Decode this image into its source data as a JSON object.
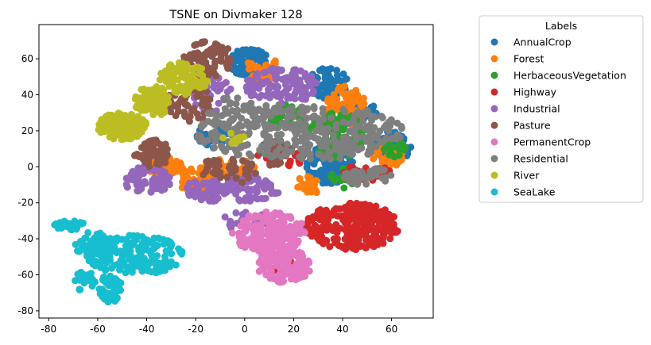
{
  "chart_data": {
    "type": "scatter",
    "title": "TSNE on Divmaker 128",
    "xlabel": "",
    "ylabel": "",
    "xlim": [
      -84,
      77
    ],
    "ylim": [
      -84,
      79
    ],
    "xticks": [
      -80,
      -60,
      -40,
      -20,
      0,
      20,
      40,
      60
    ],
    "yticks": [
      -80,
      -60,
      -40,
      -20,
      0,
      20,
      40,
      60
    ],
    "grid": false,
    "legend": {
      "title": "Labels",
      "placement": "outside-right-top"
    },
    "series": [
      {
        "name": "AnnualCrop",
        "color": "#1f77b4",
        "clusters": [
          {
            "x": [
              -6,
              10
            ],
            "y": [
              50,
              66
            ],
            "n": 90
          },
          {
            "x": [
              26,
              42
            ],
            "y": [
              38,
              55
            ],
            "n": 70
          },
          {
            "x": [
              25,
              45
            ],
            "y": [
              -10,
              12
            ],
            "n": 110
          },
          {
            "x": [
              52,
              68
            ],
            "y": [
              3,
              20
            ],
            "n": 60
          },
          {
            "x": [
              40,
              55
            ],
            "y": [
              25,
              36
            ],
            "n": 40
          },
          {
            "x": [
              -20,
              -5
            ],
            "y": [
              10,
              25
            ],
            "n": 30
          }
        ]
      },
      {
        "name": "Forest",
        "color": "#ff7f0e",
        "clusters": [
          {
            "x": [
              -40,
              -25
            ],
            "y": [
              -5,
              5
            ],
            "n": 70
          },
          {
            "x": [
              -27,
              -10
            ],
            "y": [
              -15,
              0
            ],
            "n": 60
          },
          {
            "x": [
              32,
              50
            ],
            "y": [
              20,
              45
            ],
            "n": 90
          },
          {
            "x": [
              52,
              65
            ],
            "y": [
              0,
              12
            ],
            "n": 40
          },
          {
            "x": [
              0,
              15
            ],
            "y": [
              45,
              62
            ],
            "n": 30
          },
          {
            "x": [
              -15,
              5
            ],
            "y": [
              -5,
              5
            ],
            "n": 35
          },
          {
            "x": [
              20,
              35
            ],
            "y": [
              -15,
              -5
            ],
            "n": 25
          }
        ]
      },
      {
        "name": "HerbaceousVegetation",
        "color": "#2ca02c",
        "clusters": [
          {
            "x": [
              25,
              50
            ],
            "y": [
              5,
              30
            ],
            "n": 110
          },
          {
            "x": [
              35,
              48
            ],
            "y": [
              -12,
              0
            ],
            "n": 30
          },
          {
            "x": [
              10,
              25
            ],
            "y": [
              20,
              35
            ],
            "n": 40
          },
          {
            "x": [
              55,
              66
            ],
            "y": [
              5,
              15
            ],
            "n": 25
          }
        ]
      },
      {
        "name": "Highway",
        "color": "#d62728",
        "clusters": [
          {
            "x": [
              25,
              63
            ],
            "y": [
              -46,
              -20
            ],
            "n": 260
          },
          {
            "x": [
              40,
              60
            ],
            "y": [
              -8,
              2
            ],
            "n": 30
          },
          {
            "x": [
              10,
              20
            ],
            "y": [
              -60,
              -50
            ],
            "n": 15
          },
          {
            "x": [
              5,
              25
            ],
            "y": [
              0,
              10
            ],
            "n": 20
          }
        ]
      },
      {
        "name": "Industrial",
        "color": "#9467bd",
        "clusters": [
          {
            "x": [
              -50,
              -30
            ],
            "y": [
              -15,
              0
            ],
            "n": 70
          },
          {
            "x": [
              -25,
              15
            ],
            "y": [
              -20,
              -5
            ],
            "n": 120
          },
          {
            "x": [
              0,
              30
            ],
            "y": [
              35,
              55
            ],
            "n": 110
          },
          {
            "x": [
              -22,
              -5
            ],
            "y": [
              30,
              50
            ],
            "n": 40
          },
          {
            "x": [
              -10,
              10
            ],
            "y": [
              -35,
              -25
            ],
            "n": 20
          }
        ]
      },
      {
        "name": "Pasture",
        "color": "#8c564b",
        "clusters": [
          {
            "x": [
              -25,
              -5
            ],
            "y": [
              50,
              70
            ],
            "n": 80
          },
          {
            "x": [
              -45,
              -30
            ],
            "y": [
              0,
              15
            ],
            "n": 60
          },
          {
            "x": [
              -32,
              -12
            ],
            "y": [
              25,
              45
            ],
            "n": 60
          },
          {
            "x": [
              -20,
              5
            ],
            "y": [
              -10,
              5
            ],
            "n": 40
          },
          {
            "x": [
              5,
              20
            ],
            "y": [
              0,
              15
            ],
            "n": 30
          }
        ]
      },
      {
        "name": "PermanentCrop",
        "color": "#e377c2",
        "clusters": [
          {
            "x": [
              -5,
              25
            ],
            "y": [
              -48,
              -25
            ],
            "n": 180
          },
          {
            "x": [
              5,
              27
            ],
            "y": [
              -65,
              -45
            ],
            "n": 130
          }
        ]
      },
      {
        "name": "Residential",
        "color": "#7f7f7f",
        "clusters": [
          {
            "x": [
              -20,
              65
            ],
            "y": [
              3,
              35
            ],
            "n": 320
          },
          {
            "x": [
              -15,
              10
            ],
            "y": [
              20,
              40
            ],
            "n": 40
          },
          {
            "x": [
              40,
              60
            ],
            "y": [
              -10,
              0
            ],
            "n": 40
          }
        ]
      },
      {
        "name": "River",
        "color": "#bcbd22",
        "clusters": [
          {
            "x": [
              -60,
              -40
            ],
            "y": [
              15,
              30
            ],
            "n": 150
          },
          {
            "x": [
              -45,
              -30
            ],
            "y": [
              28,
              45
            ],
            "n": 90
          },
          {
            "x": [
              -35,
              -15
            ],
            "y": [
              40,
              58
            ],
            "n": 90
          },
          {
            "x": [
              -10,
              0
            ],
            "y": [
              12,
              20
            ],
            "n": 10
          }
        ]
      },
      {
        "name": "SeaLake",
        "color": "#17becf",
        "clusters": [
          {
            "x": [
              -78,
              -65
            ],
            "y": [
              -35,
              -30
            ],
            "n": 30
          },
          {
            "x": [
              -70,
              -55
            ],
            "y": [
              -50,
              -36
            ],
            "n": 50
          },
          {
            "x": [
              -65,
              -25
            ],
            "y": [
              -60,
              -38
            ],
            "n": 170
          },
          {
            "x": [
              -60,
              -50
            ],
            "y": [
              -76,
              -60
            ],
            "n": 50
          },
          {
            "x": [
              -70,
              -60
            ],
            "y": [
              -70,
              -58
            ],
            "n": 20
          }
        ]
      }
    ]
  }
}
